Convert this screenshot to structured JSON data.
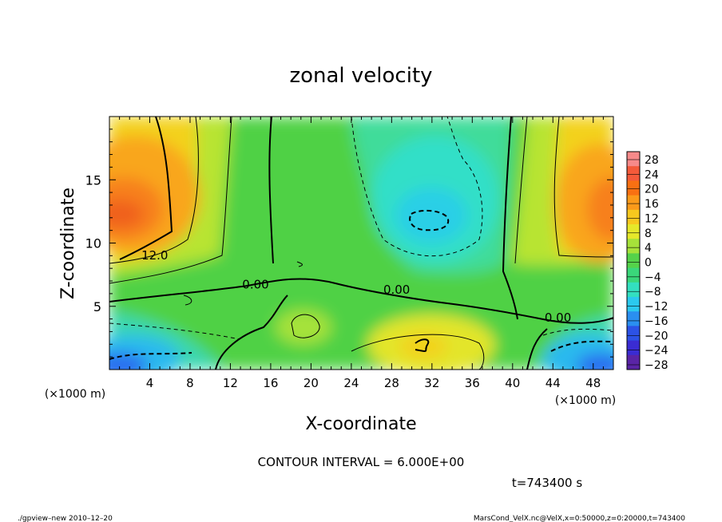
{
  "chart_data": {
    "type": "heatmap",
    "title": "zonal velocity",
    "xlabel": "X-coordinate",
    "ylabel": "Z-coordinate",
    "x_unit": "(×1000 m)",
    "x_unit_right": "(×1000 m)",
    "x_ticks": [
      "4",
      "8",
      "12",
      "16",
      "20",
      "24",
      "28",
      "32",
      "36",
      "40",
      "44",
      "48"
    ],
    "x_tick_values": [
      4,
      8,
      12,
      16,
      20,
      24,
      28,
      32,
      36,
      40,
      44,
      48
    ],
    "xlim": [
      0,
      50
    ],
    "y_ticks": [
      "5",
      "10",
      "15"
    ],
    "y_tick_values": [
      5,
      10,
      15
    ],
    "ylim": [
      0,
      20
    ],
    "contour_labels": [
      {
        "text": "12.0",
        "x": 4.5,
        "y": 8.7
      },
      {
        "text": "0.00",
        "x": 14.5,
        "y": 6.4
      },
      {
        "text": "0.00",
        "x": 28.5,
        "y": 6.0
      },
      {
        "text": "0.00",
        "x": 44.5,
        "y": 3.8
      }
    ],
    "colorbar": {
      "labels": [
        "28",
        "24",
        "20",
        "16",
        "12",
        "8",
        "4",
        "0",
        "−4",
        "−8",
        "−12",
        "−16",
        "−20",
        "−24",
        "−28"
      ],
      "values": [
        28,
        24,
        20,
        16,
        12,
        8,
        4,
        0,
        -4,
        -8,
        -12,
        -16,
        -20,
        -24,
        -28
      ],
      "colors": [
        "#f78a8a",
        "#f45a3a",
        "#f87012",
        "#fb9a1a",
        "#f7c81e",
        "#e6e82a",
        "#a6e23a",
        "#55d24a",
        "#3ad77a",
        "#33dfc0",
        "#2bc9ee",
        "#2a8ff0",
        "#2c52e6",
        "#3a2cd2",
        "#5a24a6"
      ]
    },
    "contour_interval_text": "CONTOUR INTERVAL = 6.000E+00",
    "time_text": "t=743400 s"
  },
  "footer": {
    "left": "./gpview–new 2010–12–20",
    "right": "MarsCond_VelX.nc@VelX,x=0:50000,z=0:20000,t=743400"
  }
}
